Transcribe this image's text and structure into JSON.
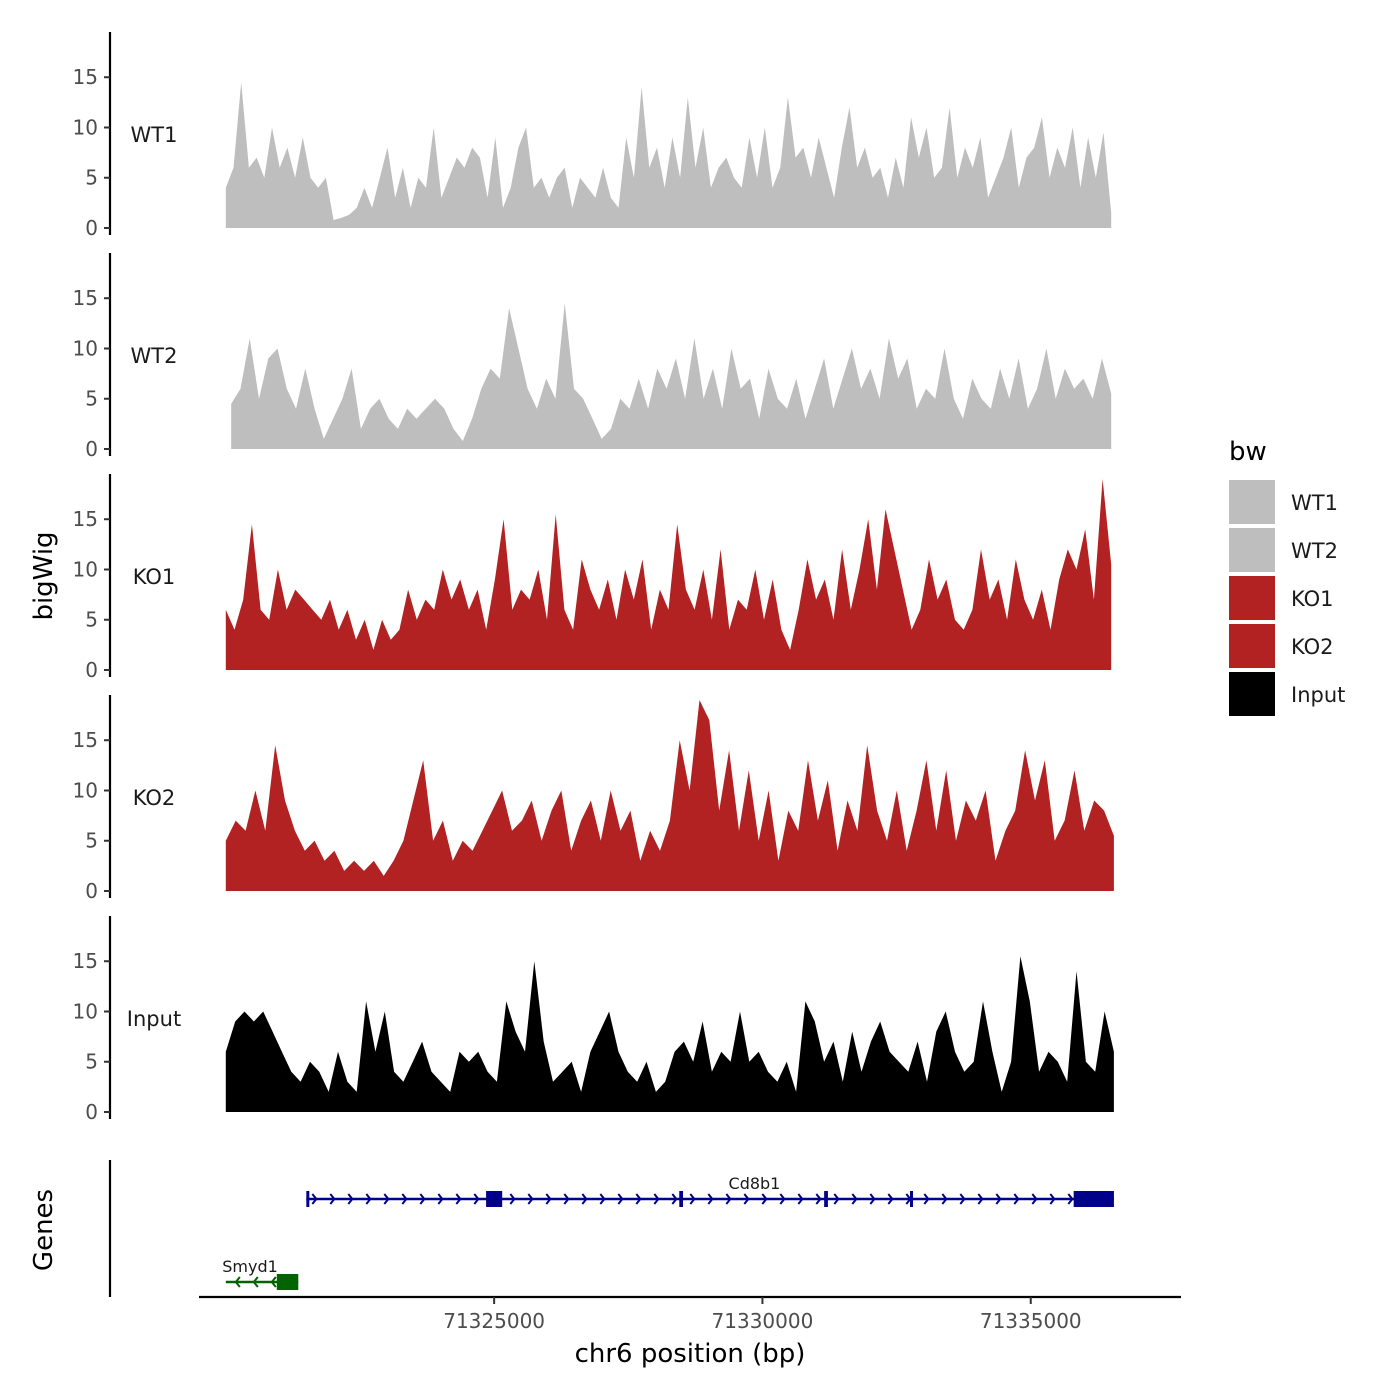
{
  "chart_data": {
    "type": "area",
    "y_axis_title": "bigWig",
    "genes_axis_title": "Genes",
    "x_axis_title": "chr6 position (bp)",
    "x_range": [
      71319500,
      71337800
    ],
    "x_ticks": [
      {
        "value": 71325000,
        "label": "71325000"
      },
      {
        "value": 71330000,
        "label": "71330000"
      },
      {
        "value": 71335000,
        "label": "71335000"
      }
    ],
    "y_range": [
      0,
      19.5
    ],
    "y_ticks": [
      {
        "value": 0,
        "label": "0"
      },
      {
        "value": 5,
        "label": "5"
      },
      {
        "value": 10,
        "label": "10"
      },
      {
        "value": 15,
        "label": "15"
      }
    ],
    "legend": {
      "title": "bw",
      "items": [
        {
          "label": "WT1",
          "color": "#bebebe"
        },
        {
          "label": "WT2",
          "color": "#bebebe"
        },
        {
          "label": "KO1",
          "color": "#b22222"
        },
        {
          "label": "KO2",
          "color": "#b22222"
        },
        {
          "label": "Input",
          "color": "#000000"
        }
      ]
    },
    "x_start": 71320000,
    "x_step": 200,
    "series": [
      {
        "name": "WT1",
        "color": "#bebebe",
        "start": 71320000,
        "end": 71336500,
        "values": [
          4,
          6,
          14.5,
          6,
          7,
          5,
          10,
          6,
          8,
          5,
          9,
          5,
          4,
          5,
          0.8,
          1,
          1.3,
          2,
          4,
          2,
          5,
          8,
          3,
          6,
          2,
          5,
          4,
          10,
          3,
          5,
          7,
          6,
          8,
          7,
          3,
          9,
          2,
          4,
          8,
          10,
          4,
          5,
          3,
          5,
          6,
          2,
          5,
          4,
          3,
          6,
          3,
          2,
          9,
          5,
          14,
          6,
          8,
          4,
          9,
          5,
          13,
          6,
          10,
          4,
          6,
          7,
          5,
          4,
          9,
          5,
          10,
          4,
          6,
          13,
          7,
          8,
          5,
          9,
          6,
          3,
          8,
          12,
          6,
          8,
          5,
          6,
          3,
          7,
          4,
          11,
          7,
          10,
          5,
          6,
          12,
          5,
          8,
          6,
          9,
          3,
          5,
          7,
          10,
          4,
          7,
          8,
          11,
          5,
          8,
          6,
          10,
          4,
          9,
          5,
          9.5,
          1.5
        ]
      },
      {
        "name": "WT2",
        "color": "#bebebe",
        "start": 71320100,
        "end": 71336500,
        "values": [
          4.5,
          6,
          11,
          5,
          9,
          10,
          6,
          4,
          8,
          4,
          1,
          3,
          5,
          8,
          2,
          4,
          5,
          3,
          2,
          4,
          3,
          4,
          5,
          4,
          2,
          0.8,
          3,
          6,
          8,
          7,
          14,
          10,
          6,
          4,
          7,
          5,
          14.5,
          6,
          5,
          3,
          1,
          2,
          5,
          4,
          7,
          4,
          8,
          6,
          9,
          5,
          11,
          5,
          8,
          4,
          10,
          6,
          7,
          3,
          8,
          5,
          4,
          7,
          3,
          6,
          9,
          4,
          7,
          10,
          6,
          8,
          5,
          11,
          7,
          9,
          4,
          6,
          5,
          10,
          5,
          3,
          7,
          5,
          4,
          8,
          5,
          9,
          4,
          6,
          10,
          5,
          8,
          6,
          7,
          5,
          9,
          5.5
        ]
      },
      {
        "name": "KO1",
        "color": "#b22222",
        "start": 71320000,
        "end": 71336500,
        "values": [
          6,
          4,
          7,
          14.5,
          6,
          5,
          10,
          6,
          8,
          7,
          6,
          5,
          7,
          4,
          6,
          3,
          5,
          2,
          5,
          3,
          4,
          8,
          5,
          7,
          6,
          10,
          7,
          9,
          6,
          8,
          4,
          9,
          15,
          6,
          8,
          7,
          10,
          5,
          15.5,
          6,
          4,
          11,
          8,
          6,
          9,
          5,
          10,
          7,
          11,
          4,
          8,
          6,
          14.5,
          8,
          6,
          10,
          5,
          12,
          4,
          7,
          6,
          10,
          5,
          9,
          4,
          2,
          6,
          11,
          7,
          9,
          5,
          12,
          6,
          10,
          15,
          8,
          16,
          12,
          8,
          4,
          6,
          11,
          7,
          9,
          5,
          4,
          6,
          12,
          7,
          9,
          5,
          11,
          7,
          5,
          8,
          4,
          9,
          12,
          10,
          14,
          7,
          19,
          10.5
        ]
      },
      {
        "name": "KO2",
        "color": "#b22222",
        "start": 71320000,
        "end": 71336550,
        "values": [
          5,
          7,
          6,
          10,
          6,
          14.5,
          9,
          6,
          4,
          5,
          3,
          4,
          2,
          3,
          2,
          3,
          1.5,
          3,
          5,
          9,
          13,
          5,
          7,
          3,
          5,
          4,
          6,
          8,
          10,
          6,
          7,
          9,
          5,
          8,
          10,
          4,
          7,
          9,
          5,
          10,
          6,
          8,
          3,
          6,
          4,
          7,
          15,
          10,
          19,
          17,
          8,
          14,
          6,
          12,
          5,
          10,
          3,
          8,
          6,
          13,
          7,
          11,
          4,
          9,
          6,
          14.5,
          8,
          5,
          10,
          4,
          8,
          13,
          6,
          12,
          5,
          9,
          7,
          10,
          3,
          6,
          8,
          14,
          9,
          13,
          5,
          7,
          12,
          6,
          9,
          8,
          5.5
        ]
      },
      {
        "name": "Input",
        "color": "#000000",
        "start": 71320000,
        "end": 71336550,
        "values": [
          6,
          9,
          10,
          9,
          10,
          8,
          6,
          4,
          3,
          5,
          4,
          2,
          6,
          3,
          2,
          11,
          6,
          10,
          4,
          3,
          5,
          7,
          4,
          3,
          2,
          6,
          5,
          6,
          4,
          3,
          11,
          8,
          6,
          15,
          7,
          3,
          4,
          5,
          2,
          6,
          8,
          10,
          6,
          4,
          3,
          5,
          2,
          3,
          6,
          7,
          5,
          9,
          4,
          6,
          5,
          10,
          5,
          6,
          4,
          3,
          5,
          2,
          11,
          9,
          5,
          7,
          3,
          8,
          4,
          7,
          9,
          6,
          5,
          4,
          7,
          3,
          8,
          10,
          6,
          4,
          5,
          11,
          6,
          2,
          5,
          15.5,
          11,
          4,
          6,
          5,
          3,
          14,
          5,
          4,
          10,
          6
        ]
      }
    ],
    "genes": [
      {
        "name": "Cd8b1",
        "strand": "+",
        "color": "#00008b",
        "start": 71321500,
        "end": 71336550,
        "exons": [
          [
            71321500,
            71321520
          ],
          [
            71324850,
            71325150
          ],
          [
            71328450,
            71328520
          ],
          [
            71331150,
            71331220
          ],
          [
            71332750,
            71332800
          ],
          [
            71335800,
            71336550
          ]
        ]
      },
      {
        "name": "Smyd1",
        "strand": "-",
        "color": "#006400",
        "start": 71320000,
        "end": 71321350,
        "exons": [
          [
            71320950,
            71321350
          ]
        ]
      }
    ]
  }
}
